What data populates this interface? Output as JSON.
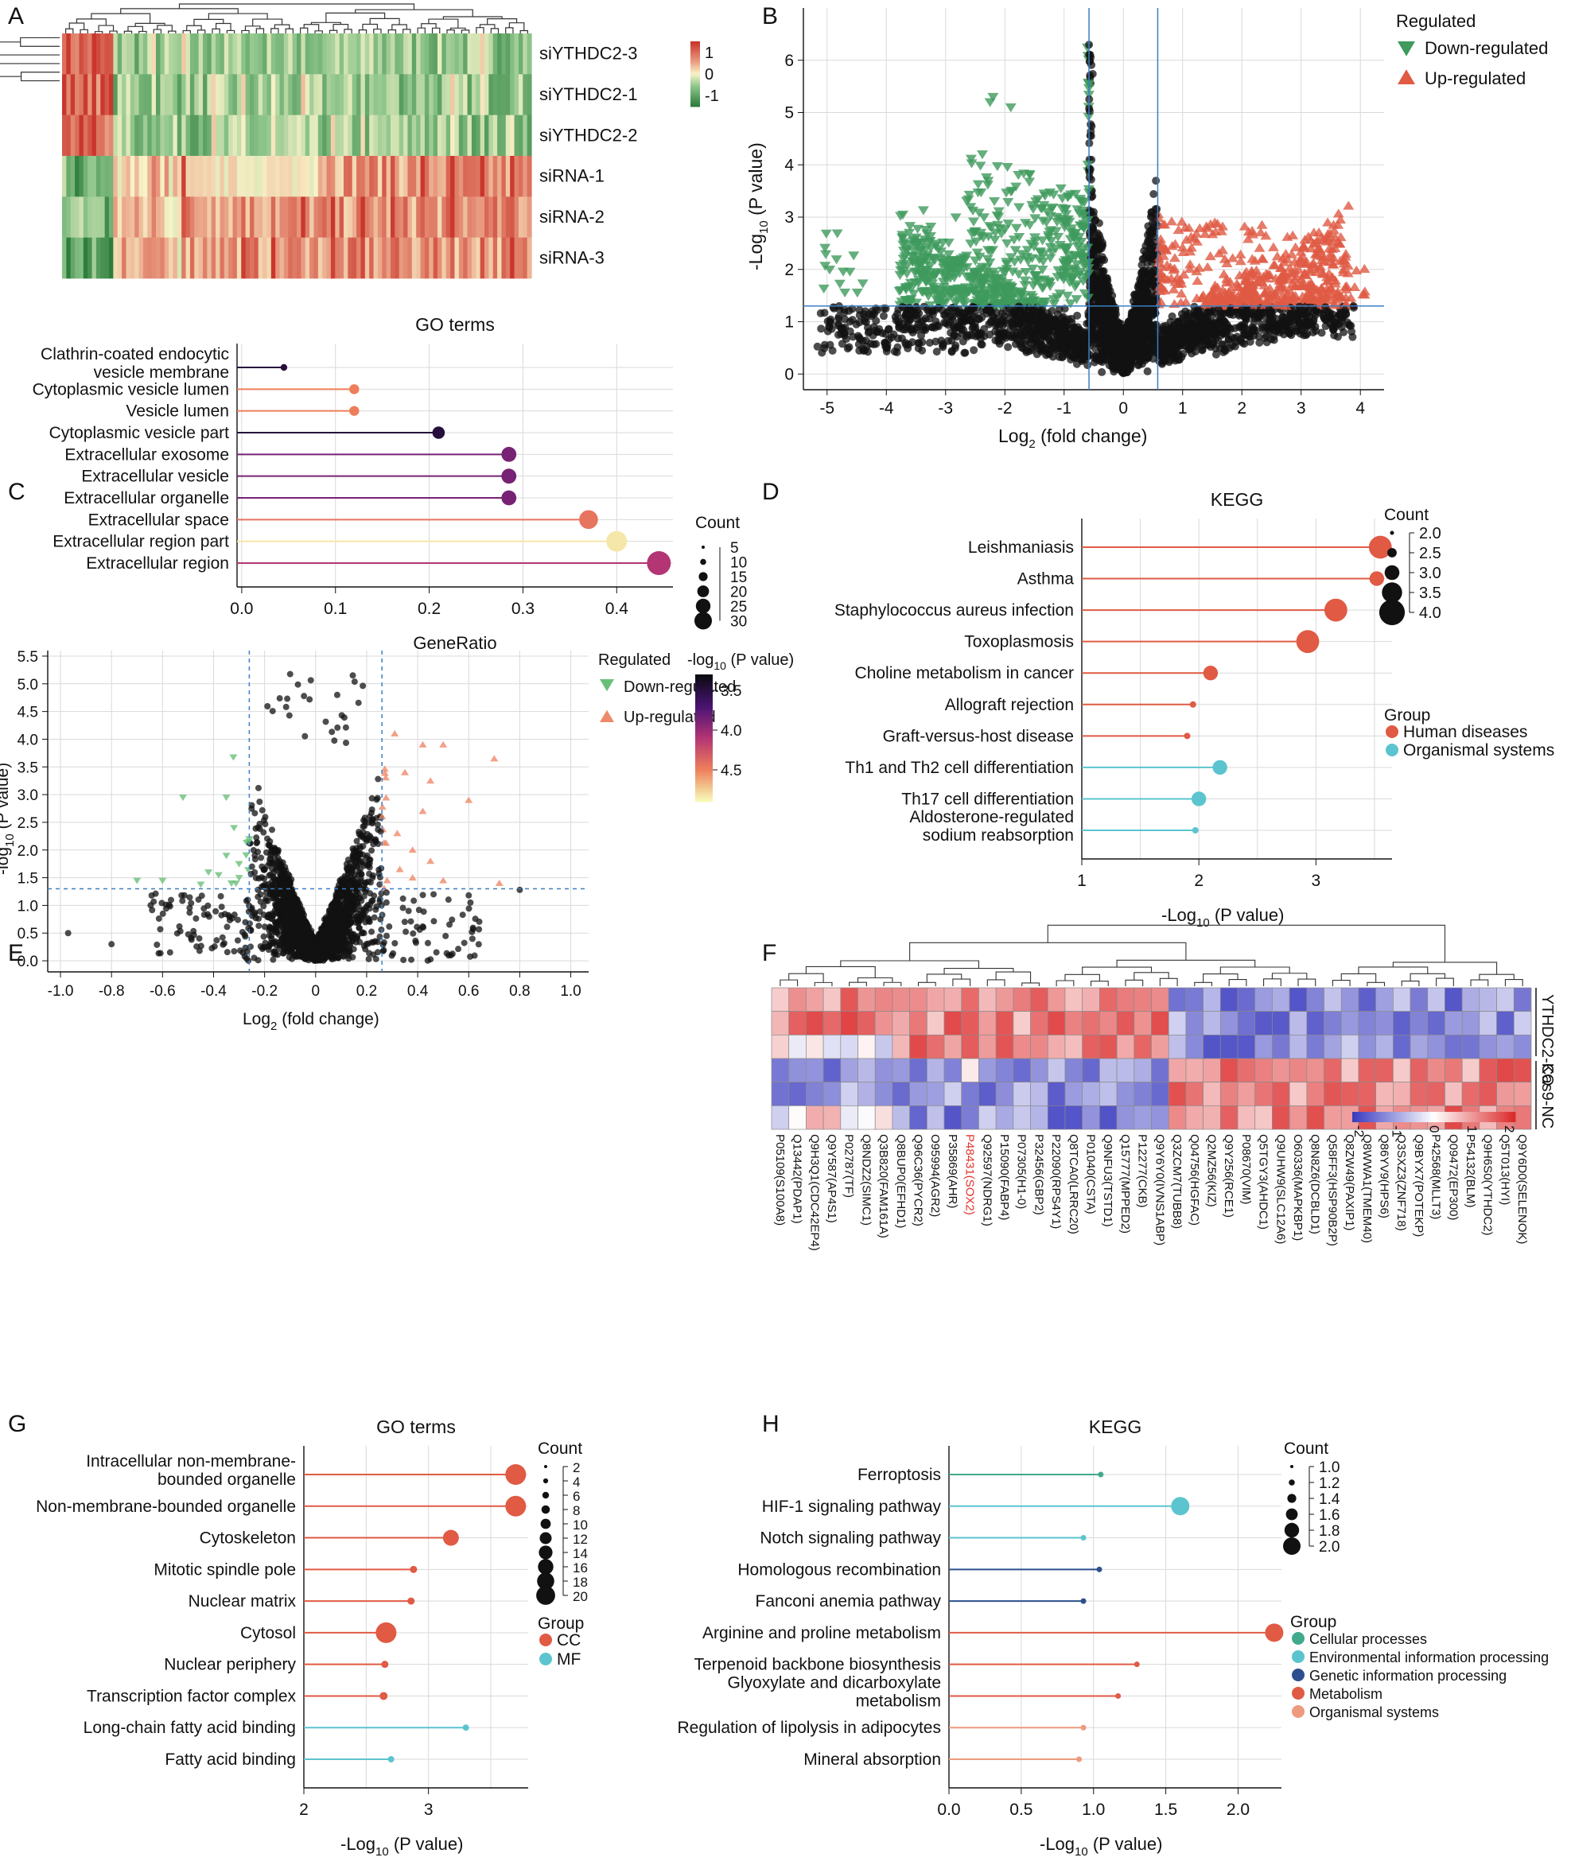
{
  "figure": {
    "palette": {
      "green": "#3f9a5c",
      "red": "#e05a44",
      "black": "#111111",
      "grid": "#d9d9d9",
      "dash": "#3b7fc4",
      "teal": "#5bc4cf",
      "darkblue": "#2d4f8e"
    }
  },
  "chart_data": [
    {
      "panel": "A",
      "type": "heatmap",
      "rows": [
        "siYTHDC2-3",
        "siYTHDC2-1",
        "siYTHDC2-2",
        "siRNA-1",
        "siRNA-2",
        "siRNA-3"
      ],
      "colorbar": {
        "ticks": [
          "1",
          "0",
          "-1"
        ],
        "range": [
          -1.5,
          1.5
        ]
      }
    },
    {
      "panel": "B",
      "type": "scatter",
      "xlabel": "Log",
      "xlabel_sub": "2",
      "xlabel_rest": " (fold change)",
      "ylabel": "-Log",
      "ylabel_sub": "10",
      "ylabel_rest": " (P value)",
      "xlim": [
        -5.4,
        4.4
      ],
      "ylim": [
        -0.3,
        7.0
      ],
      "xticks": [
        "-5",
        "-4",
        "-3",
        "-2",
        "-1",
        "0",
        "1",
        "2",
        "3",
        "4"
      ],
      "yticks": [
        "0",
        "1",
        "2",
        "3",
        "4",
        "5",
        "6"
      ],
      "legend": {
        "title": "Regulated",
        "entries": [
          "Down-regulated",
          "Up-regulated"
        ]
      },
      "thresholds": {
        "x": [
          -0.58,
          0.58
        ],
        "y": 1.3
      }
    },
    {
      "panel": "C",
      "type": "lollipop",
      "title": "GO terms",
      "xlabel": "GeneRatio",
      "xlim": [
        0,
        0.46
      ],
      "xticks": [
        "0.0",
        "0.1",
        "0.2",
        "0.3",
        "0.4"
      ],
      "categories": [
        "Clathrin-coated endocytic vesicle membrane",
        "Cytoplasmic vesicle lumen",
        "Vesicle lumen",
        "Cytoplasmic vesicle part",
        "Extracellular exosome",
        "Extracellular vesicle",
        "Extracellular organelle",
        "Extracellular space",
        "Extracellular region part",
        "Extracellular region"
      ],
      "values": [
        0.045,
        0.12,
        0.12,
        0.21,
        0.285,
        0.285,
        0.285,
        0.37,
        0.4,
        0.445
      ],
      "counts": [
        3,
        8,
        8,
        12,
        16,
        16,
        16,
        22,
        25,
        30
      ],
      "neglogp": [
        3.55,
        4.45,
        4.45,
        3.55,
        3.9,
        3.9,
        3.9,
        4.4,
        4.75,
        4.1
      ],
      "count_legend": {
        "title": "Count",
        "labels": [
          "5",
          "10",
          "15",
          "20",
          "25",
          "30"
        ]
      },
      "color_legend": {
        "title": "-log",
        "title_sub": "10",
        "title_rest": " (P value)",
        "labels": [
          "3.5",
          "4.0",
          "4.5"
        ]
      }
    },
    {
      "panel": "D",
      "type": "lollipop",
      "title": "KEGG",
      "xlabel": "-Log",
      "xlabel_sub": "10",
      "xlabel_rest": " (P value)",
      "xlim": [
        1,
        3.65
      ],
      "xticks": [
        "1",
        "2",
        "3"
      ],
      "categories": [
        "Leishmaniasis",
        "Asthma",
        "Staphylococcus aureus infection",
        "Toxoplasmosis",
        "Choline metabolism in cancer",
        "Allograft rejection",
        "Graft-versus-host disease",
        "Th1 and Th2 cell differentiation",
        "Th17 cell differentiation",
        "Aldosterone-regulated sodium reabsorption"
      ],
      "values": [
        3.55,
        3.52,
        3.17,
        2.93,
        2.1,
        1.95,
        1.9,
        2.18,
        2.0,
        1.97
      ],
      "counts": [
        4,
        3,
        4,
        4,
        3,
        2,
        2,
        3,
        3,
        2
      ],
      "groups": [
        "h",
        "h",
        "h",
        "h",
        "h",
        "h",
        "h",
        "o",
        "o",
        "o"
      ],
      "count_legend": {
        "title": "Count",
        "labels": [
          "2.0",
          "2.5",
          "3.0",
          "3.5",
          "4.0"
        ]
      },
      "group_legend": {
        "title": "Group",
        "entries": [
          "Human diseases",
          "Organismal systems"
        ]
      }
    },
    {
      "panel": "E",
      "type": "scatter",
      "xlabel": "Log",
      "xlabel_sub": "2",
      "xlabel_rest": " (fold change)",
      "ylabel": "-log",
      "ylabel_sub": "10",
      "ylabel_rest": " (P value)",
      "xlim": [
        -1.05,
        1.07
      ],
      "ylim": [
        -0.2,
        5.6
      ],
      "xticks": [
        "-1.0",
        "-0.8",
        "-0.6",
        "-0.4",
        "-0.2",
        "0",
        "0.2",
        "0.4",
        "0.6",
        "0.8",
        "1.0"
      ],
      "yticks": [
        "0.0",
        "0.5",
        "1.0",
        "1.5",
        "2.0",
        "2.5",
        "3.0",
        "3.5",
        "4.0",
        "4.5",
        "5.0",
        "5.5"
      ],
      "legend": {
        "title": "Regulated",
        "entries": [
          "Down-regulated",
          "Up-regulated"
        ]
      },
      "thresholds": {
        "x": [
          -0.26,
          0.26
        ],
        "y": 1.3
      }
    },
    {
      "panel": "F",
      "type": "heatmap",
      "groups": [
        "YTHDC2-KO",
        "Cas9-NC"
      ],
      "columns": [
        "P05109(S100A8)",
        "Q13442(PDAP1)",
        "Q9H3Q1(CDC42EP4)",
        "Q9Y587(AP4S1)",
        "P02787(TF)",
        "Q8NDZ2(SIMC1)",
        "Q3B820(FAM161A)",
        "Q8BUP0(EFHD1)",
        "Q96C36(PYCR2)",
        "O95994(AGR2)",
        "P35869(AHR)",
        "P48431(SOX2)",
        "Q92597(NDRG1)",
        "P15090(FABP4)",
        "P07305(H1-0)",
        "P32456(GBP2)",
        "P22090(RPS4Y1)",
        "Q8TCA0(LRRC20)",
        "P01040(CSTA)",
        "Q9NFU3(TSTD1)",
        "Q15777(MPPED2)",
        "P12277(CKB)",
        "Q9Y6Y0(IVNS1ABP)",
        "Q3ZCM7(TUBB8)",
        "Q04756(HGFAC)",
        "Q2MZ56(KIZ)",
        "Q9Y256(RCE1)",
        "P08670(VIM)",
        "Q5TGY3(AHDC1)",
        "Q9UHW9(SLC12A6)",
        "O60336(MAPKBP1)",
        "Q8N8Z6(DCBLD1)",
        "Q58FF3(HSP90B2P)",
        "Q8ZW49(PAXIP1)",
        "Q8WWA1(TMEM40)",
        "Q86YV9(HPS6)",
        "Q3SXZ3(ZNF718)",
        "Q9BYX7(POTEKP)",
        "P42568(MLLT3)",
        "Q09472(EP300)",
        "P54132(BLM)",
        "Q9H6S0(YTHDC2)",
        "Q5T013(HYI)",
        "Q9Y6D0(SELENOK)"
      ],
      "highlight": "P48431(SOX2)",
      "colorbar": {
        "ticks": [
          "-2",
          "-1",
          "0",
          "1",
          "2"
        ]
      }
    },
    {
      "panel": "G",
      "type": "lollipop",
      "title": "GO terms",
      "xlabel": "-Log",
      "xlabel_sub": "10",
      "xlabel_rest": " (P value)",
      "xlim": [
        2,
        3.8
      ],
      "xticks": [
        "2",
        "3"
      ],
      "categories": [
        "Intracellular non-membrane-bounded organelle",
        "Non-membrane-bounded organelle",
        "Cytoskeleton",
        "Mitotic spindle pole",
        "Nuclear matrix",
        "Cytosol",
        "Nuclear periphery",
        "Transcription factor complex",
        "Long-chain fatty acid binding",
        "Fatty acid binding"
      ],
      "values": [
        3.7,
        3.7,
        3.18,
        2.88,
        2.86,
        2.66,
        2.65,
        2.64,
        3.3,
        2.7
      ],
      "counts": [
        20,
        20,
        14,
        3,
        3,
        20,
        3,
        4,
        2,
        2
      ],
      "groups": [
        "CC",
        "CC",
        "CC",
        "CC",
        "CC",
        "CC",
        "CC",
        "CC",
        "MF",
        "MF"
      ],
      "count_legend": {
        "title": "Count",
        "labels": [
          "2",
          "4",
          "6",
          "8",
          "10",
          "12",
          "14",
          "16",
          "18",
          "20"
        ]
      },
      "group_legend": {
        "title": "Group",
        "entries": [
          "CC",
          "MF"
        ]
      }
    },
    {
      "panel": "H",
      "type": "lollipop",
      "title": "KEGG",
      "xlabel": "-Log",
      "xlabel_sub": "10",
      "xlabel_rest": " (P value)",
      "xlim": [
        0,
        2.3
      ],
      "xticks": [
        "0.0",
        "0.5",
        "1.0",
        "1.5",
        "2.0"
      ],
      "categories": [
        "Ferroptosis",
        "HIF-1 signaling pathway",
        "Notch signaling pathway",
        "Homologous recombination",
        "Fanconi anemia pathway",
        "Arginine and proline metabolism",
        "Terpenoid backbone biosynthesis",
        "Glyoxylate and dicarboxylate metabolism",
        "Regulation of lipolysis in adipocytes",
        "Mineral absorption"
      ],
      "values": [
        1.05,
        1.6,
        0.93,
        1.04,
        0.93,
        2.25,
        1.3,
        1.17,
        0.93,
        0.9
      ],
      "counts": [
        1,
        2,
        1,
        1,
        1,
        2,
        1,
        1,
        1,
        1
      ],
      "groups": [
        "cp",
        "eip",
        "eip",
        "gip",
        "gip",
        "met",
        "met",
        "met",
        "os",
        "os"
      ],
      "count_legend": {
        "title": "Count",
        "labels": [
          "1.0",
          "1.2",
          "1.4",
          "1.6",
          "1.8",
          "2.0"
        ]
      },
      "group_legend": {
        "title": "Group",
        "entries": [
          "Cellular processes",
          "Environmental information processing",
          "Genetic information processing",
          "Metabolism",
          "Organismal systems"
        ]
      }
    }
  ],
  "panel_labels": [
    "A",
    "B",
    "C",
    "D",
    "E",
    "F",
    "G",
    "H"
  ]
}
